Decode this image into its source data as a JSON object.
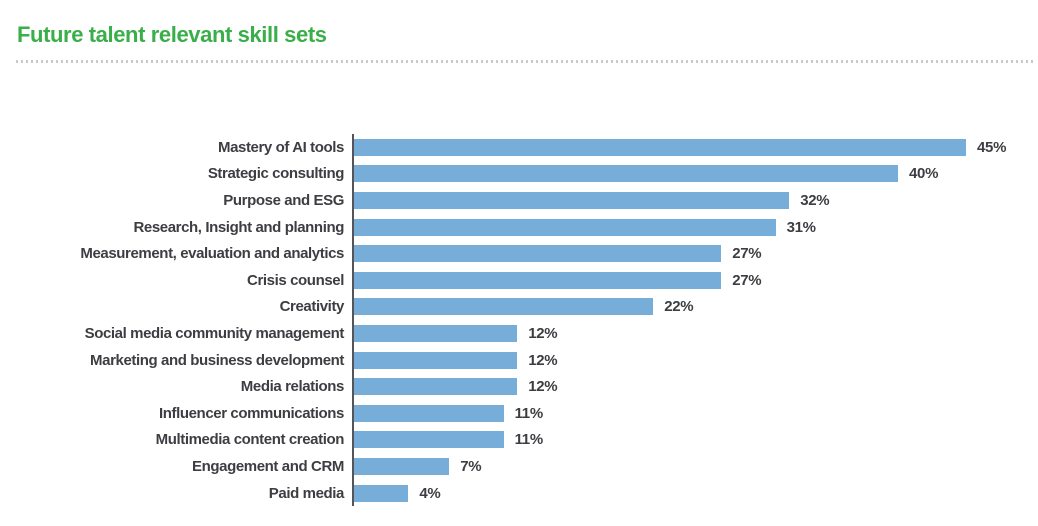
{
  "header": {
    "title": "Future talent relevant skill sets"
  },
  "colors": {
    "title_green": "#3aae49",
    "bar_blue": "#76aed9",
    "label_dark": "#3d3e42",
    "axis_gray": "#53555a",
    "divider_gray": "#c9c9c9"
  },
  "chart_data": {
    "type": "bar",
    "orientation": "horizontal",
    "title": "Future talent relevant skill sets",
    "categories": [
      "Mastery of AI tools",
      "Strategic consulting",
      "Purpose and ESG",
      "Research, Insight and planning",
      "Measurement, evaluation and analytics",
      "Crisis counsel",
      "Creativity",
      "Social media community management",
      "Marketing and business development",
      "Media relations",
      "Influencer communications",
      "Multimedia content creation",
      "Engagement and CRM",
      "Paid media"
    ],
    "values": [
      45,
      40,
      32,
      31,
      27,
      27,
      22,
      12,
      12,
      12,
      11,
      11,
      7,
      4
    ],
    "value_suffix": "%",
    "xlabel": "",
    "ylabel": "",
    "xlim": [
      0,
      48
    ],
    "grid": false,
    "legend": false,
    "value_labels": "end-of-bar"
  }
}
